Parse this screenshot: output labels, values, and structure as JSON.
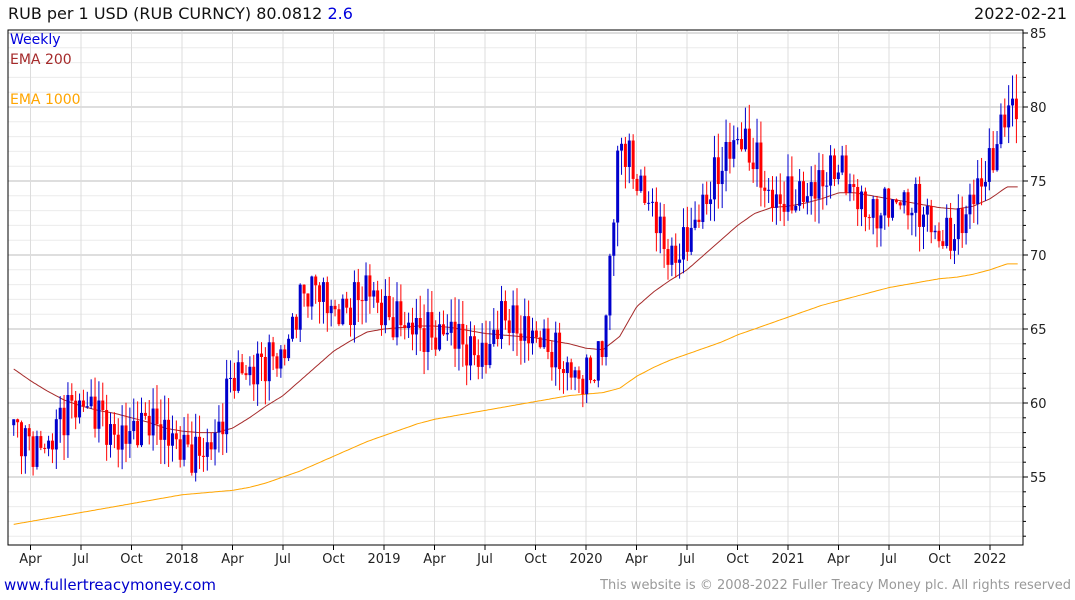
{
  "header": {
    "title": "RUB per 1 USD (RUB CURNCY) 80.0812",
    "change": "2.6",
    "date": "2022-02-21"
  },
  "legend": {
    "weekly": "Weekly",
    "ema200": "EMA 200",
    "ema1000": "EMA 1000"
  },
  "footer": {
    "link": "www.fullertreacymoney.com",
    "copyright": "This website is © 2008-2022 Fuller Treacy Money plc. All rights reserved"
  },
  "colors": {
    "up": "#0000cc",
    "down": "#ff0000",
    "ema200": "#a52a2a",
    "ema1000": "#ffa500",
    "title_change": "#0000dd"
  },
  "chart_data": {
    "type": "candlestick",
    "title": "RUB per 1 USD (RUB CURNCY)",
    "last": 80.0812,
    "ylim": [
      50.5,
      85
    ],
    "yticks": [
      55,
      60,
      65,
      70,
      75,
      80,
      85
    ],
    "start_date": 2017.167,
    "end_date": 2022.14,
    "xticks": [
      {
        "label": "Apr",
        "date": 2017.25
      },
      {
        "label": "Jul",
        "date": 2017.5
      },
      {
        "label": "Oct",
        "date": 2017.75
      },
      {
        "label": "2018",
        "date": 2018.0
      },
      {
        "label": "Apr",
        "date": 2018.25
      },
      {
        "label": "Jul",
        "date": 2018.5
      },
      {
        "label": "Oct",
        "date": 2018.75
      },
      {
        "label": "2019",
        "date": 2019.0
      },
      {
        "label": "Apr",
        "date": 2019.25
      },
      {
        "label": "Jul",
        "date": 2019.5
      },
      {
        "label": "Oct",
        "date": 2019.75
      },
      {
        "label": "2020",
        "date": 2020.0
      },
      {
        "label": "Apr",
        "date": 2020.25
      },
      {
        "label": "Jul",
        "date": 2020.5
      },
      {
        "label": "Oct",
        "date": 2020.75
      },
      {
        "label": "2021",
        "date": 2021.0
      },
      {
        "label": "Apr",
        "date": 2021.25
      },
      {
        "label": "Jul",
        "date": 2021.5
      },
      {
        "label": "Oct",
        "date": 2021.75
      },
      {
        "label": "2022",
        "date": 2022.0
      }
    ],
    "monthly_close": [
      58.5,
      57,
      57,
      59.5,
      60,
      59.5,
      57.5,
      58,
      59,
      58,
      57,
      56.5,
      57.5,
      62,
      62,
      63,
      63,
      67,
      68,
      66,
      66.5,
      68,
      66,
      65.5,
      65,
      64.5,
      65,
      63.5,
      63,
      66,
      65,
      64.5,
      63.5,
      62,
      61.5,
      63.5,
      78,
      75,
      73,
      69.5,
      71,
      73.5,
      76,
      78,
      76.5,
      73.5,
      73.8,
      74,
      75,
      76,
      74,
      72.5,
      73.5,
      73.5,
      73,
      71,
      71.5,
      74,
      76,
      80
    ],
    "ema200": [
      62.3,
      61.5,
      60.8,
      60.2,
      59.8,
      59.5,
      59.3,
      59,
      58.7,
      58.3,
      58.1,
      58,
      58,
      58.3,
      59,
      59.8,
      60.5,
      61.5,
      62.5,
      63.5,
      64.2,
      64.8,
      65,
      65.1,
      65.2,
      65.2,
      65.1,
      64.9,
      64.7,
      64.6,
      64.5,
      64.4,
      64.2,
      64,
      63.7,
      63.6,
      64.5,
      66.5,
      67.5,
      68.3,
      69,
      70,
      71,
      72,
      72.8,
      73.2,
      73.3,
      73.5,
      73.8,
      74.2,
      74.2,
      74,
      73.8,
      73.6,
      73.4,
      73.2,
      73.1,
      73.3,
      73.8,
      74.6
    ],
    "ema1000": [
      51.8,
      52,
      52.2,
      52.4,
      52.6,
      52.8,
      53,
      53.2,
      53.4,
      53.6,
      53.8,
      53.9,
      54,
      54.1,
      54.3,
      54.6,
      55,
      55.4,
      55.9,
      56.4,
      56.9,
      57.4,
      57.8,
      58.2,
      58.6,
      58.9,
      59.1,
      59.3,
      59.5,
      59.7,
      59.9,
      60.1,
      60.3,
      60.5,
      60.6,
      60.7,
      61,
      61.8,
      62.4,
      62.9,
      63.3,
      63.7,
      64.1,
      64.6,
      65,
      65.4,
      65.8,
      66.2,
      66.6,
      66.9,
      67.2,
      67.5,
      67.8,
      68,
      68.2,
      68.4,
      68.5,
      68.7,
      69,
      69.4
    ]
  }
}
